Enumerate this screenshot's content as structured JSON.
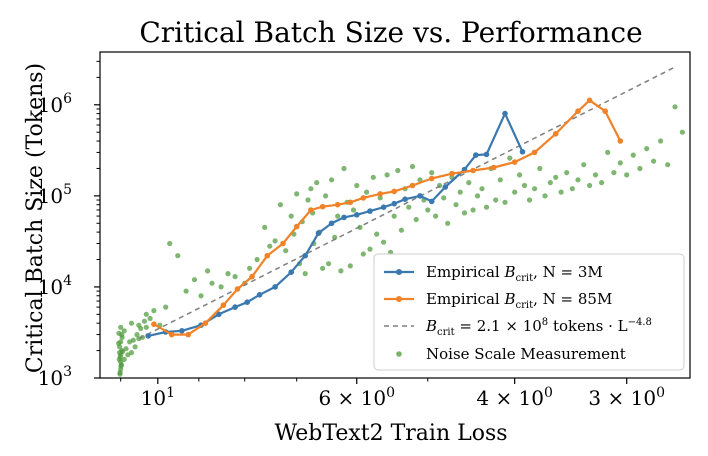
{
  "chart_data": {
    "type": "line",
    "title": "Critical Batch Size vs. Performance",
    "xlabel": "WebText2 Train Loss",
    "ylabel": "Critical Batch Size (Tokens)",
    "x_scale": "log",
    "x_direction": "decreasing",
    "y_scale": "log",
    "xlim": [
      11.6,
      2.55
    ],
    "ylim": [
      1000,
      3800000
    ],
    "x_ticks": [
      {
        "value": 10,
        "label_base": "10",
        "label_exp": "1"
      },
      {
        "value": 6,
        "label_base": "6 × 10",
        "label_exp": "0"
      },
      {
        "value": 4,
        "label_base": "4 × 10",
        "label_exp": "0"
      },
      {
        "value": 3,
        "label_base": "3 × 10",
        "label_exp": "0"
      }
    ],
    "y_ticks": [
      {
        "value": 1000,
        "label_base": "10",
        "label_exp": "3"
      },
      {
        "value": 10000,
        "label_base": "10",
        "label_exp": "4"
      },
      {
        "value": 100000,
        "label_base": "10",
        "label_exp": "5"
      },
      {
        "value": 1000000,
        "label_base": "10",
        "label_exp": "6"
      }
    ],
    "grid": false,
    "legend_position": "bottom-right",
    "series": [
      {
        "kind": "line",
        "color": "#3a78b0",
        "legend": {
          "prefix": "Empirical ",
          "var": "B",
          "sub": "crit",
          "suffix": ", N = 3M"
        },
        "points": [
          [
            10.25,
            2900
          ],
          [
            9.8,
            3200
          ],
          [
            9.4,
            3300
          ],
          [
            8.95,
            3800
          ],
          [
            8.55,
            5000
          ],
          [
            8.2,
            6000
          ],
          [
            7.95,
            6800
          ],
          [
            7.7,
            8200
          ],
          [
            7.4,
            10000
          ],
          [
            7.1,
            14500
          ],
          [
            6.85,
            22000
          ],
          [
            6.62,
            39000
          ],
          [
            6.4,
            50000
          ],
          [
            6.2,
            58000
          ],
          [
            6.0,
            62000
          ],
          [
            5.8,
            68000
          ],
          [
            5.6,
            75000
          ],
          [
            5.45,
            82000
          ],
          [
            5.3,
            92000
          ],
          [
            5.1,
            100000
          ],
          [
            4.95,
            87000
          ],
          [
            4.78,
            125000
          ],
          [
            4.55,
            195000
          ],
          [
            4.42,
            280000
          ],
          [
            4.3,
            285000
          ],
          [
            4.1,
            800000
          ],
          [
            3.92,
            305000
          ]
        ]
      },
      {
        "kind": "line",
        "color": "#f08228",
        "legend": {
          "prefix": "Empirical ",
          "var": "B",
          "sub": "crit",
          "suffix": ", N = 85M"
        },
        "points": [
          [
            10.1,
            3900
          ],
          [
            9.65,
            3000
          ],
          [
            9.25,
            3000
          ],
          [
            8.85,
            4000
          ],
          [
            8.45,
            6300
          ],
          [
            8.15,
            9500
          ],
          [
            7.85,
            13000
          ],
          [
            7.55,
            22000
          ],
          [
            7.25,
            30000
          ],
          [
            7.0,
            46000
          ],
          [
            6.75,
            70000
          ],
          [
            6.55,
            76000
          ],
          [
            6.3,
            80000
          ],
          [
            6.1,
            85000
          ],
          [
            5.9,
            95000
          ],
          [
            5.65,
            105000
          ],
          [
            5.45,
            112000
          ],
          [
            5.2,
            130000
          ],
          [
            4.95,
            155000
          ],
          [
            4.7,
            175000
          ],
          [
            4.45,
            190000
          ],
          [
            4.22,
            205000
          ],
          [
            4.0,
            235000
          ],
          [
            3.8,
            300000
          ],
          [
            3.6,
            480000
          ],
          [
            3.4,
            850000
          ],
          [
            3.3,
            1120000
          ],
          [
            3.17,
            850000
          ],
          [
            3.05,
            400000
          ]
        ]
      },
      {
        "kind": "dashed",
        "color": "#7f7f7f",
        "legend": {
          "var": "B",
          "sub": "crit",
          "middle": " = 2.1 × 10",
          "exp": "8",
          "suffix": " tokens · L",
          "exp2": "−4.8"
        },
        "points": [
          [
            10.5,
            2700
          ],
          [
            2.65,
            2600000
          ]
        ]
      },
      {
        "kind": "scatter",
        "color": "#4e9a3a",
        "legend": {
          "prefix": "Noise Scale Measurement"
        },
        "points": [
          [
            11.02,
            1100
          ],
          [
            11.0,
            1250
          ],
          [
            10.98,
            1400
          ],
          [
            11.04,
            1600
          ],
          [
            11.0,
            1800
          ],
          [
            10.97,
            2000
          ],
          [
            11.03,
            2200
          ],
          [
            11.0,
            2500
          ],
          [
            10.96,
            2800
          ],
          [
            11.05,
            3100
          ],
          [
            11.0,
            3600
          ],
          [
            11.02,
            1150
          ],
          [
            10.99,
            1350
          ],
          [
            11.01,
            1700
          ],
          [
            10.95,
            1950
          ],
          [
            11.06,
            2400
          ],
          [
            10.97,
            3000
          ],
          [
            11.0,
            1500
          ],
          [
            11.03,
            1900
          ],
          [
            10.9,
            1600
          ],
          [
            10.85,
            2100
          ],
          [
            10.8,
            1800
          ],
          [
            10.75,
            2500
          ],
          [
            10.7,
            1900
          ],
          [
            10.65,
            2600
          ],
          [
            10.6,
            2200
          ],
          [
            10.55,
            3000
          ],
          [
            10.5,
            2700
          ],
          [
            10.45,
            3500
          ],
          [
            10.4,
            2800
          ],
          [
            10.35,
            4200
          ],
          [
            10.3,
            3600
          ],
          [
            10.9,
            3300
          ],
          [
            10.7,
            4000
          ],
          [
            10.5,
            3800
          ],
          [
            10.3,
            5000
          ],
          [
            10.2,
            4500
          ],
          [
            10.1,
            5500
          ],
          [
            9.95,
            3800
          ],
          [
            9.8,
            6000
          ],
          [
            9.7,
            30000
          ],
          [
            9.5,
            22000
          ],
          [
            9.3,
            9000
          ],
          [
            9.1,
            12000
          ],
          [
            8.95,
            8000
          ],
          [
            8.8,
            15000
          ],
          [
            8.7,
            11000
          ],
          [
            8.5,
            10000
          ],
          [
            8.35,
            14000
          ],
          [
            8.2,
            13000
          ],
          [
            8.0,
            11000
          ],
          [
            7.9,
            16000
          ],
          [
            7.75,
            20000
          ],
          [
            7.6,
            45000
          ],
          [
            7.5,
            28000
          ],
          [
            7.4,
            32000
          ],
          [
            7.3,
            80000
          ],
          [
            7.2,
            25000
          ],
          [
            7.1,
            60000
          ],
          [
            7.05,
            38000
          ],
          [
            7.0,
            105000
          ],
          [
            6.95,
            18000
          ],
          [
            6.9,
            52000
          ],
          [
            6.85,
            14000
          ],
          [
            6.8,
            90000
          ],
          [
            6.75,
            120000
          ],
          [
            6.72,
            65000
          ],
          [
            6.7,
            30000
          ],
          [
            6.65,
            140000
          ],
          [
            6.6,
            40000
          ],
          [
            6.55,
            16000
          ],
          [
            6.5,
            100000
          ],
          [
            6.45,
            18000
          ],
          [
            6.4,
            150000
          ],
          [
            6.35,
            35000
          ],
          [
            6.3,
            60000
          ],
          [
            6.25,
            15000
          ],
          [
            6.2,
            200000
          ],
          [
            6.15,
            85000
          ],
          [
            6.1,
            17000
          ],
          [
            6.05,
            70000
          ],
          [
            6.0,
            130000
          ],
          [
            5.95,
            45000
          ],
          [
            5.9,
            23000
          ],
          [
            5.85,
            110000
          ],
          [
            5.8,
            26000
          ],
          [
            5.75,
            160000
          ],
          [
            5.7,
            38000
          ],
          [
            5.65,
            95000
          ],
          [
            5.6,
            31000
          ],
          [
            5.55,
            170000
          ],
          [
            5.5,
            24000
          ],
          [
            5.45,
            60000
          ],
          [
            5.4,
            190000
          ],
          [
            5.35,
            42000
          ],
          [
            5.3,
            120000
          ],
          [
            5.25,
            75000
          ],
          [
            5.2,
            210000
          ],
          [
            5.15,
            55000
          ],
          [
            5.1,
            150000
          ],
          [
            5.05,
            90000
          ],
          [
            5.0,
            70000
          ],
          [
            4.95,
            180000
          ],
          [
            4.9,
            60000
          ],
          [
            4.85,
            130000
          ],
          [
            4.8,
            95000
          ],
          [
            4.75,
            50000
          ],
          [
            4.7,
            160000
          ],
          [
            4.65,
            80000
          ],
          [
            4.6,
            110000
          ],
          [
            4.55,
            65000
          ],
          [
            4.5,
            140000
          ],
          [
            4.45,
            70000
          ],
          [
            4.4,
            100000
          ],
          [
            4.35,
            120000
          ],
          [
            4.3,
            75000
          ],
          [
            4.25,
            200000
          ],
          [
            4.2,
            90000
          ],
          [
            4.15,
            150000
          ],
          [
            4.1,
            85000
          ],
          [
            4.05,
            260000
          ],
          [
            4.0,
            110000
          ],
          [
            3.95,
            170000
          ],
          [
            3.9,
            130000
          ],
          [
            3.85,
            90000
          ],
          [
            3.8,
            120000
          ],
          [
            3.75,
            200000
          ],
          [
            3.7,
            100000
          ],
          [
            3.65,
            140000
          ],
          [
            3.6,
            160000
          ],
          [
            3.55,
            110000
          ],
          [
            3.5,
            180000
          ],
          [
            3.45,
            120000
          ],
          [
            3.4,
            150000
          ],
          [
            3.35,
            220000
          ],
          [
            3.3,
            130000
          ],
          [
            3.25,
            170000
          ],
          [
            3.2,
            140000
          ],
          [
            3.15,
            300000
          ],
          [
            3.1,
            180000
          ],
          [
            3.05,
            230000
          ],
          [
            3.0,
            170000
          ],
          [
            2.95,
            280000
          ],
          [
            2.9,
            200000
          ],
          [
            2.85,
            330000
          ],
          [
            2.8,
            240000
          ],
          [
            2.75,
            400000
          ],
          [
            2.7,
            220000
          ],
          [
            2.65,
            950000
          ],
          [
            2.6,
            500000
          ]
        ]
      }
    ]
  }
}
